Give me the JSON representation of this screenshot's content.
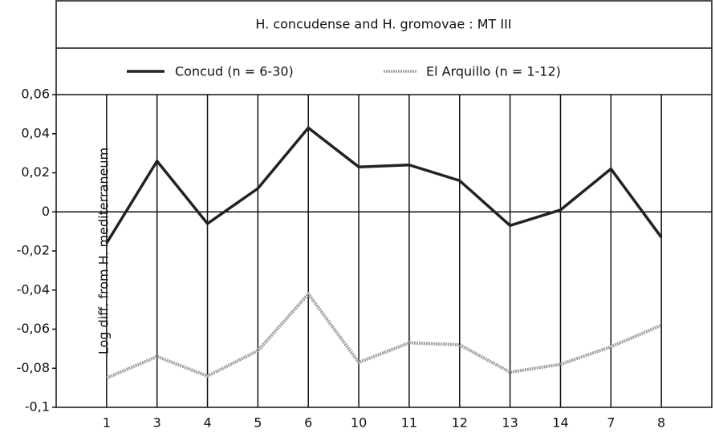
{
  "chart_data": {
    "type": "line",
    "title": "H. concudense and H. gromovae : MT III",
    "y_label": "Log diff. from H. mediterraneum",
    "categories": [
      "1",
      "3",
      "4",
      "5",
      "6",
      "10",
      "11",
      "12",
      "13",
      "14",
      "7",
      "8"
    ],
    "series": [
      {
        "name": "Concud (n = 6-30)",
        "color": "#222222",
        "values": [
          -0.016,
          0.026,
          -0.006,
          0.012,
          0.043,
          0.023,
          0.024,
          0.016,
          -0.007,
          0.001,
          0.022,
          -0.013
        ]
      },
      {
        "name": "El Arquillo (n = 1-12)",
        "color": "#a0a0a0",
        "values": [
          -0.085,
          -0.074,
          -0.084,
          -0.071,
          -0.042,
          -0.077,
          -0.067,
          -0.068,
          -0.082,
          -0.078,
          -0.069,
          -0.058
        ]
      }
    ],
    "ylim": [
      -0.1,
      0.06
    ],
    "yticks": [
      {
        "value": -0.1,
        "label": "-0,1"
      },
      {
        "value": -0.08,
        "label": "-0,08"
      },
      {
        "value": -0.06,
        "label": "-0,06"
      },
      {
        "value": -0.04,
        "label": "-0,04"
      },
      {
        "value": -0.02,
        "label": "-0,02"
      },
      0,
      {
        "value": 0.02,
        "label": "0,02"
      },
      {
        "value": 0.04,
        "label": "0,04"
      },
      {
        "value": 0.06,
        "label": "0,06"
      }
    ],
    "grid": "x"
  }
}
